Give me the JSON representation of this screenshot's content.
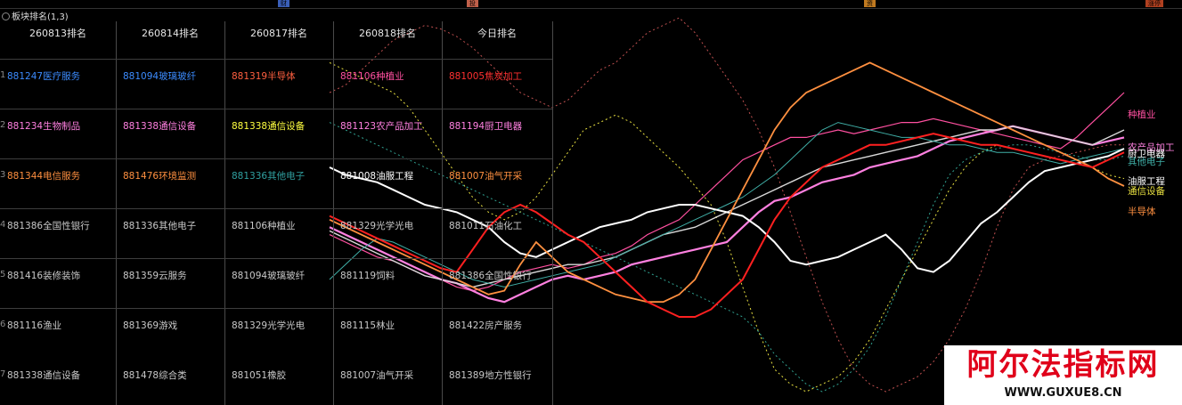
{
  "title": "板块排名(1,3)",
  "top_markers": [
    {
      "label": "财",
      "color": "#3a5fb8"
    },
    {
      "label": "投",
      "color": "#c0604a"
    },
    {
      "label": "资",
      "color": "#c07a20"
    },
    {
      "label": "涨停",
      "color": "#b04020"
    }
  ],
  "table": {
    "headers": [
      "260813排名",
      "260814排名",
      "260817排名",
      "260818排名",
      "今日排名"
    ],
    "row_numbers": [
      "1",
      "2",
      "3",
      "4",
      "5",
      "6",
      "7"
    ],
    "rows": [
      [
        {
          "t": "881247医疗服务",
          "c": "#3c8cff"
        },
        {
          "t": "881094玻璃玻纤",
          "c": "#3c8cff"
        },
        {
          "t": "881319半导体",
          "c": "#ff6040"
        },
        {
          "t": "881106种植业",
          "c": "#ff50a0"
        },
        {
          "t": "881005焦炭加工",
          "c": "#ff3030"
        }
      ],
      [
        {
          "t": "881234生物制品",
          "c": "#ff80e0"
        },
        {
          "t": "881338通信设备",
          "c": "#ff80e0"
        },
        {
          "t": "881338通信设备",
          "c": "#ffff40"
        },
        {
          "t": "881123农产品加工",
          "c": "#ff80e0"
        },
        {
          "t": "881194厨卫电器",
          "c": "#ff80e0"
        }
      ],
      [
        {
          "t": "881344电信服务",
          "c": "#ff9040"
        },
        {
          "t": "881476环境监测",
          "c": "#ff9040"
        },
        {
          "t": "881336其他电子",
          "c": "#30a0a0"
        },
        {
          "t": "881008油服工程",
          "c": "#ffffff"
        },
        {
          "t": "881007油气开采",
          "c": "#ff9040"
        }
      ],
      [
        {
          "t": "881386全国性银行",
          "c": "#c8c8c8"
        },
        {
          "t": "881336其他电子",
          "c": "#c8c8c8"
        },
        {
          "t": "881106种植业",
          "c": "#c8c8c8"
        },
        {
          "t": "881329光学光电",
          "c": "#c8c8c8"
        },
        {
          "t": "881011石油化工",
          "c": "#c8c8c8"
        }
      ],
      [
        {
          "t": "881416装修装饰",
          "c": "#c8c8c8"
        },
        {
          "t": "881359云服务",
          "c": "#c8c8c8"
        },
        {
          "t": "881094玻璃玻纤",
          "c": "#c8c8c8"
        },
        {
          "t": "881119饲料",
          "c": "#c8c8c8"
        },
        {
          "t": "881386全国性银行",
          "c": "#c8c8c8"
        }
      ],
      [
        {
          "t": "881116渔业",
          "c": "#c8c8c8"
        },
        {
          "t": "881369游戏",
          "c": "#c8c8c8"
        },
        {
          "t": "881329光学光电",
          "c": "#c8c8c8"
        },
        {
          "t": "881115林业",
          "c": "#c8c8c8"
        },
        {
          "t": "881422房产服务",
          "c": "#c8c8c8"
        }
      ],
      [
        {
          "t": "881338通信设备",
          "c": "#c8c8c8"
        },
        {
          "t": "881478综合类",
          "c": "#c8c8c8"
        },
        {
          "t": "881051橡胶",
          "c": "#c8c8c8"
        },
        {
          "t": "881007油气开采",
          "c": "#c8c8c8"
        },
        {
          "t": "881389地方性银行",
          "c": "#c8c8c8"
        }
      ]
    ]
  },
  "chart_data": {
    "type": "line",
    "x": [
      0,
      1,
      2,
      3,
      4,
      5,
      6,
      7,
      8,
      9,
      10,
      11,
      12,
      13,
      14,
      15,
      16,
      17,
      18,
      19,
      20,
      21,
      22,
      23,
      24,
      25,
      26,
      27,
      28,
      29,
      30,
      31,
      32,
      33,
      34,
      35,
      36,
      37,
      38,
      39,
      40,
      41,
      42,
      43,
      44,
      45,
      46,
      47,
      48,
      49,
      50
    ],
    "ylim": [
      0,
      100
    ],
    "series": [
      {
        "name": "种植业",
        "color": "#ff50a0",
        "dash": false,
        "width": 1.2,
        "values": [
          42,
          40,
          38,
          36,
          35,
          33,
          31,
          30,
          28,
          27,
          28,
          30,
          32,
          33,
          34,
          33,
          34,
          36,
          37,
          39,
          42,
          44,
          46,
          50,
          54,
          58,
          62,
          64,
          66,
          68,
          68,
          69,
          70,
          69,
          70,
          71,
          72,
          72,
          73,
          72,
          71,
          70,
          69,
          68,
          67,
          66,
          65,
          68,
          72,
          76,
          80
        ]
      },
      {
        "name": "农产品加工",
        "color": "#ff80e0",
        "dash": false,
        "width": 2.2,
        "values": [
          44,
          42,
          40,
          38,
          36,
          34,
          32,
          30,
          29,
          27,
          25,
          24,
          26,
          28,
          30,
          31,
          30,
          31,
          32,
          34,
          35,
          36,
          37,
          38,
          39,
          40,
          44,
          48,
          51,
          52,
          54,
          56,
          57,
          58,
          60,
          61,
          62,
          63,
          65,
          67,
          68,
          69,
          70,
          71,
          70,
          69,
          68,
          67,
          66,
          67,
          68
        ]
      },
      {
        "name": "厨卫电器",
        "color": "#d9d9d9",
        "dash": false,
        "width": 1.4,
        "values": [
          43,
          41,
          39,
          37,
          35,
          33,
          31,
          30,
          29,
          28,
          29,
          30,
          31,
          32,
          33,
          34,
          34,
          35,
          36,
          38,
          40,
          42,
          43,
          44,
          46,
          48,
          50,
          52,
          54,
          56,
          58,
          60,
          61,
          62,
          63,
          64,
          65,
          66,
          67,
          68,
          69,
          70,
          70,
          71,
          70,
          69,
          68,
          67,
          66,
          68,
          70
        ]
      },
      {
        "name": "其他电子",
        "color": "#40b0a8",
        "dash": false,
        "width": 1.0,
        "values": [
          30,
          34,
          38,
          41,
          40,
          38,
          36,
          34,
          32,
          30,
          29,
          28,
          29,
          30,
          31,
          32,
          33,
          34,
          36,
          38,
          40,
          42,
          44,
          46,
          48,
          50,
          52,
          55,
          58,
          62,
          66,
          70,
          72,
          71,
          70,
          69,
          68,
          68,
          67,
          66,
          66,
          65,
          64,
          64,
          63,
          62,
          61,
          62,
          63,
          64,
          65
        ]
      },
      {
        "name": "油服工程",
        "color": "#ffffff",
        "dash": false,
        "width": 2.0,
        "values": [
          60,
          58,
          57,
          56,
          54,
          52,
          50,
          49,
          48,
          46,
          44,
          40,
          37,
          36,
          38,
          40,
          42,
          44,
          45,
          46,
          48,
          49,
          50,
          50,
          49,
          48,
          47,
          44,
          40,
          35,
          34,
          35,
          36,
          38,
          40,
          42,
          38,
          33,
          32,
          35,
          40,
          45,
          48,
          52,
          56,
          59,
          60,
          61,
          62,
          63,
          65
        ]
      },
      {
        "name": "半导体",
        "color": "#ff9040",
        "dash": false,
        "width": 1.8,
        "values": [
          46,
          44,
          42,
          40,
          38,
          36,
          34,
          32,
          30,
          28,
          26,
          27,
          34,
          40,
          36,
          32,
          30,
          28,
          26,
          25,
          24,
          24,
          26,
          30,
          38,
          46,
          54,
          62,
          70,
          76,
          80,
          82,
          84,
          86,
          88,
          86,
          84,
          82,
          80,
          78,
          76,
          74,
          72,
          70,
          68,
          66,
          64,
          62,
          60,
          57,
          55
        ]
      },
      {
        "name": "焦炭加工",
        "color": "#ff2020",
        "dash": false,
        "width": 2.0,
        "values": [
          47,
          45,
          43,
          41,
          39,
          37,
          35,
          33,
          32,
          38,
          44,
          48,
          50,
          48,
          45,
          42,
          40,
          36,
          32,
          28,
          24,
          22,
          20,
          20,
          22,
          26,
          30,
          38,
          46,
          52,
          56,
          60,
          62,
          64,
          66,
          66,
          67,
          68,
          69,
          68,
          67,
          66,
          66,
          65,
          64,
          63,
          62,
          61,
          60,
          62,
          64
        ]
      },
      {
        "name": "通信设备",
        "color": "#e8e040",
        "dash": true,
        "width": 1.0,
        "values": [
          88,
          86,
          84,
          82,
          80,
          76,
          70,
          64,
          58,
          52,
          48,
          46,
          48,
          52,
          58,
          64,
          70,
          72,
          74,
          72,
          68,
          64,
          60,
          55,
          50,
          40,
          28,
          16,
          6,
          2,
          0,
          2,
          4,
          8,
          14,
          22,
          30,
          38,
          46,
          54,
          60,
          64,
          66,
          65,
          64,
          63,
          62,
          61,
          60,
          58,
          57
        ]
      },
      {
        "name": "油气开采",
        "color": "#c05050",
        "dash": true,
        "width": 1.0,
        "values": [
          80,
          82,
          86,
          90,
          94,
          96,
          98,
          97,
          95,
          92,
          88,
          84,
          80,
          78,
          76,
          78,
          82,
          86,
          88,
          92,
          96,
          98,
          100,
          96,
          90,
          84,
          78,
          70,
          60,
          48,
          36,
          24,
          14,
          6,
          2,
          0,
          2,
          4,
          8,
          14,
          22,
          32,
          44,
          54,
          60,
          62,
          63,
          64,
          65,
          66,
          66
        ]
      },
      {
        "name": "玻璃玻纤",
        "color": "#30a090",
        "dash": true,
        "width": 1.0,
        "values": [
          72,
          70,
          68,
          66,
          64,
          62,
          60,
          58,
          56,
          54,
          52,
          50,
          48,
          46,
          44,
          42,
          40,
          38,
          36,
          34,
          32,
          30,
          28,
          26,
          24,
          22,
          20,
          16,
          10,
          6,
          2,
          0,
          2,
          6,
          12,
          20,
          30,
          40,
          50,
          58,
          62,
          64,
          65,
          66,
          66,
          65,
          64,
          63,
          62,
          62,
          63
        ]
      }
    ],
    "labels": [
      {
        "text": "种植业",
        "color": "#ff50a0"
      },
      {
        "text": "农产品加工",
        "color": "#ff80e0"
      },
      {
        "text": "厨卫电器",
        "color": "#ffffff"
      },
      {
        "text": "其他电子",
        "color": "#40b0a8"
      },
      {
        "text": "油服工程",
        "color": "#ffffff"
      },
      {
        "text": "通信设备",
        "color": "#e8e040"
      },
      {
        "text": "半导体",
        "color": "#ff9040"
      }
    ]
  },
  "watermark": {
    "main": "阿尔法指标网",
    "url": "WWW.GUXUE8.CN"
  }
}
